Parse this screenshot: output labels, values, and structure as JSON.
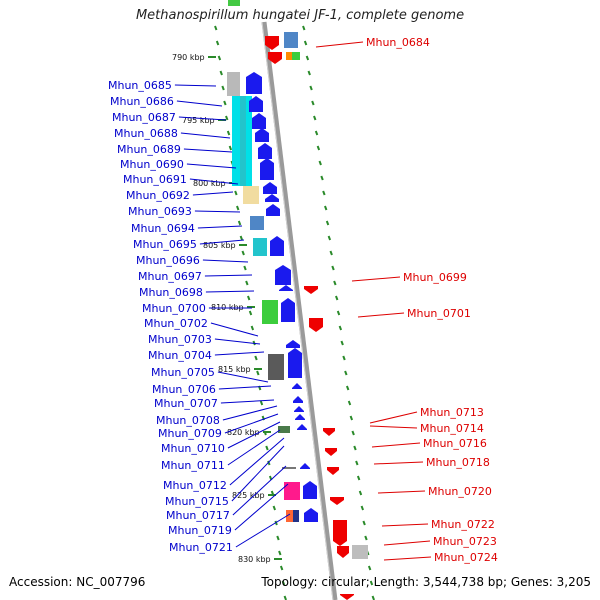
{
  "title": "Methanospirillum hungatei JF-1, complete genome",
  "accession": "Accession: NC_007796",
  "summary": "Topology: circular; Length: 3,544,738 bp; Genes: 3,205",
  "colors": {
    "left_label": "#0000cc",
    "right_label": "#dd0000",
    "backbone": "#9a9a9a",
    "tick": "#2a8a2a"
  },
  "kbp_ticks": [
    "790 kbp",
    "795 kbp",
    "800 kbp",
    "805 kbp",
    "810 kbp",
    "815 kbp",
    "820 kbp",
    "825 kbp",
    "830 kbp"
  ],
  "left_genes": [
    "Mhun_0685",
    "Mhun_0686",
    "Mhun_0687",
    "Mhun_0688",
    "Mhun_0689",
    "Mhun_0690",
    "Mhun_0691",
    "Mhun_0692",
    "Mhun_0693",
    "Mhun_0694",
    "Mhun_0695",
    "Mhun_0696",
    "Mhun_0697",
    "Mhun_0698",
    "Mhun_0700",
    "Mhun_0702",
    "Mhun_0703",
    "Mhun_0704",
    "Mhun_0705",
    "Mhun_0706",
    "Mhun_0707",
    "Mhun_0708",
    "Mhun_0709",
    "Mhun_0710",
    "Mhun_0711",
    "Mhun_0712",
    "Mhun_0715",
    "Mhun_0717",
    "Mhun_0719",
    "Mhun_0721"
  ],
  "right_genes": [
    "Mhun_0684",
    "Mhun_0699",
    "Mhun_0701",
    "Mhun_0713",
    "Mhun_0714",
    "Mhun_0716",
    "Mhun_0718",
    "Mhun_0720",
    "Mhun_0722",
    "Mhun_0723",
    "Mhun_0724"
  ]
}
